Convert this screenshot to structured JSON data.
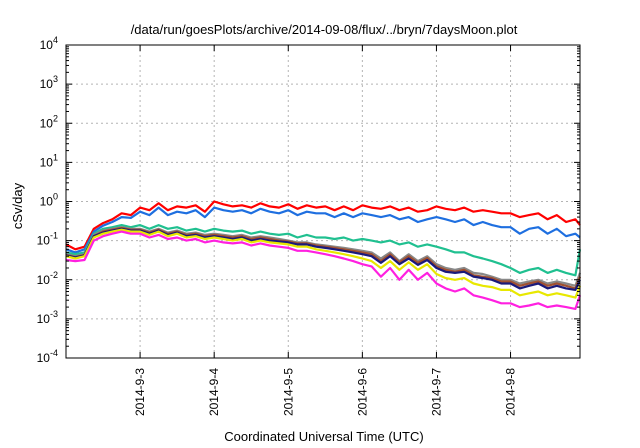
{
  "chart_data": {
    "type": "line",
    "title": "/data/run/goesPlots/archive/2014-09-08/flux/../bryn/7daysMoon.plot",
    "xlabel": "Coordinated Universal Time (UTC)",
    "ylabel": "cSv/day",
    "y_scale": "log",
    "ylim": [
      0.0001,
      10000
    ],
    "xlim": [
      "2014-09-02 00:00",
      "2014-09-08 22:30"
    ],
    "grid": true,
    "legend": "none",
    "x_ticks": [
      {
        "value": "2014-09-03",
        "label": "2014-9-3"
      },
      {
        "value": "2014-09-04",
        "label": "2014-9-4"
      },
      {
        "value": "2014-09-05",
        "label": "2014-9-5"
      },
      {
        "value": "2014-09-06",
        "label": "2014-9-6"
      },
      {
        "value": "2014-09-07",
        "label": "2014-9-7"
      },
      {
        "value": "2014-09-08",
        "label": "2014-9-8"
      }
    ],
    "y_ticks": [
      {
        "value": 0.0001,
        "base": "10",
        "exp": "-4"
      },
      {
        "value": 0.001,
        "base": "10",
        "exp": "-3"
      },
      {
        "value": 0.01,
        "base": "10",
        "exp": "-2"
      },
      {
        "value": 0.1,
        "base": "10",
        "exp": "-1"
      },
      {
        "value": 1,
        "base": "10",
        "exp": "0"
      },
      {
        "value": 10,
        "base": "10",
        "exp": "1"
      },
      {
        "value": 100,
        "base": "10",
        "exp": "2"
      },
      {
        "value": 1000,
        "base": "10",
        "exp": "3"
      },
      {
        "value": 10000,
        "base": "10",
        "exp": "4"
      }
    ],
    "x": [
      "2014-09-02 00:00",
      "2014-09-02 03:00",
      "2014-09-02 06:00",
      "2014-09-02 09:00",
      "2014-09-02 12:00",
      "2014-09-02 15:00",
      "2014-09-02 18:00",
      "2014-09-02 21:00",
      "2014-09-03 00:00",
      "2014-09-03 03:00",
      "2014-09-03 06:00",
      "2014-09-03 09:00",
      "2014-09-03 12:00",
      "2014-09-03 15:00",
      "2014-09-03 18:00",
      "2014-09-03 21:00",
      "2014-09-04 00:00",
      "2014-09-04 03:00",
      "2014-09-04 06:00",
      "2014-09-04 09:00",
      "2014-09-04 12:00",
      "2014-09-04 15:00",
      "2014-09-04 18:00",
      "2014-09-04 21:00",
      "2014-09-05 00:00",
      "2014-09-05 03:00",
      "2014-09-05 06:00",
      "2014-09-05 09:00",
      "2014-09-05 12:00",
      "2014-09-05 15:00",
      "2014-09-05 18:00",
      "2014-09-05 21:00",
      "2014-09-06 00:00",
      "2014-09-06 03:00",
      "2014-09-06 06:00",
      "2014-09-06 09:00",
      "2014-09-06 12:00",
      "2014-09-06 15:00",
      "2014-09-06 18:00",
      "2014-09-06 21:00",
      "2014-09-07 00:00",
      "2014-09-07 03:00",
      "2014-09-07 06:00",
      "2014-09-07 09:00",
      "2014-09-07 12:00",
      "2014-09-07 15:00",
      "2014-09-07 18:00",
      "2014-09-07 21:00",
      "2014-09-08 00:00",
      "2014-09-08 03:00",
      "2014-09-08 06:00",
      "2014-09-08 09:00",
      "2014-09-08 12:00",
      "2014-09-08 15:00",
      "2014-09-08 18:00",
      "2014-09-08 21:00",
      "2014-09-08 22:30"
    ],
    "series": [
      {
        "color": "#ff0000",
        "values": [
          0.08,
          0.06,
          0.07,
          0.2,
          0.28,
          0.35,
          0.5,
          0.45,
          0.7,
          0.6,
          0.9,
          0.6,
          0.75,
          0.7,
          0.8,
          0.55,
          1.0,
          0.85,
          0.75,
          0.8,
          0.7,
          0.9,
          0.75,
          0.7,
          0.85,
          0.65,
          0.8,
          0.7,
          0.75,
          0.6,
          0.75,
          0.6,
          0.8,
          0.7,
          0.65,
          0.75,
          0.6,
          0.7,
          0.55,
          0.6,
          0.75,
          0.65,
          0.6,
          0.7,
          0.55,
          0.6,
          0.55,
          0.5,
          0.5,
          0.4,
          0.45,
          0.5,
          0.35,
          0.45,
          0.3,
          0.35,
          0.25
        ]
      },
      {
        "color": "#1e6fe0",
        "values": [
          0.06,
          0.05,
          0.06,
          0.17,
          0.24,
          0.3,
          0.4,
          0.38,
          0.55,
          0.45,
          0.7,
          0.45,
          0.55,
          0.5,
          0.6,
          0.4,
          0.7,
          0.6,
          0.55,
          0.6,
          0.5,
          0.65,
          0.55,
          0.5,
          0.6,
          0.45,
          0.55,
          0.5,
          0.5,
          0.4,
          0.5,
          0.4,
          0.5,
          0.45,
          0.4,
          0.45,
          0.35,
          0.4,
          0.3,
          0.35,
          0.4,
          0.35,
          0.3,
          0.35,
          0.25,
          0.3,
          0.25,
          0.22,
          0.22,
          0.15,
          0.2,
          0.22,
          0.15,
          0.2,
          0.13,
          0.15,
          0.12
        ]
      },
      {
        "color": "#20c090",
        "values": [
          0.05,
          0.045,
          0.05,
          0.15,
          0.2,
          0.22,
          0.25,
          0.22,
          0.25,
          0.2,
          0.25,
          0.2,
          0.22,
          0.18,
          0.2,
          0.17,
          0.2,
          0.18,
          0.17,
          0.18,
          0.15,
          0.17,
          0.15,
          0.14,
          0.15,
          0.12,
          0.14,
          0.12,
          0.12,
          0.11,
          0.12,
          0.1,
          0.11,
          0.1,
          0.09,
          0.1,
          0.08,
          0.09,
          0.07,
          0.08,
          0.07,
          0.06,
          0.05,
          0.05,
          0.04,
          0.035,
          0.03,
          0.025,
          0.02,
          0.015,
          0.018,
          0.02,
          0.015,
          0.018,
          0.015,
          0.013,
          0.06
        ]
      },
      {
        "color": "#888888",
        "values": [
          0.045,
          0.04,
          0.045,
          0.14,
          0.18,
          0.2,
          0.22,
          0.2,
          0.2,
          0.17,
          0.2,
          0.16,
          0.18,
          0.15,
          0.16,
          0.14,
          0.15,
          0.14,
          0.13,
          0.14,
          0.12,
          0.13,
          0.12,
          0.11,
          0.1,
          0.09,
          0.09,
          0.08,
          0.075,
          0.07,
          0.065,
          0.06,
          0.055,
          0.05,
          0.035,
          0.05,
          0.03,
          0.045,
          0.03,
          0.04,
          0.025,
          0.02,
          0.018,
          0.02,
          0.015,
          0.014,
          0.012,
          0.01,
          0.01,
          0.008,
          0.009,
          0.01,
          0.008,
          0.009,
          0.008,
          0.007,
          0.015
        ]
      },
      {
        "color": "#a05030",
        "values": [
          0.043,
          0.038,
          0.043,
          0.13,
          0.17,
          0.19,
          0.21,
          0.19,
          0.19,
          0.16,
          0.19,
          0.15,
          0.17,
          0.14,
          0.15,
          0.13,
          0.14,
          0.13,
          0.12,
          0.13,
          0.11,
          0.12,
          0.11,
          0.1,
          0.095,
          0.085,
          0.085,
          0.075,
          0.07,
          0.065,
          0.06,
          0.055,
          0.05,
          0.045,
          0.03,
          0.045,
          0.028,
          0.04,
          0.027,
          0.036,
          0.022,
          0.018,
          0.016,
          0.018,
          0.013,
          0.012,
          0.011,
          0.009,
          0.009,
          0.007,
          0.008,
          0.009,
          0.007,
          0.008,
          0.007,
          0.006,
          0.012
        ]
      },
      {
        "color": "#1a1a7a",
        "values": [
          0.042,
          0.037,
          0.042,
          0.13,
          0.16,
          0.18,
          0.2,
          0.18,
          0.18,
          0.15,
          0.18,
          0.14,
          0.16,
          0.13,
          0.14,
          0.12,
          0.13,
          0.12,
          0.11,
          0.12,
          0.1,
          0.11,
          0.1,
          0.095,
          0.09,
          0.08,
          0.08,
          0.07,
          0.065,
          0.06,
          0.055,
          0.05,
          0.045,
          0.04,
          0.027,
          0.04,
          0.025,
          0.035,
          0.024,
          0.032,
          0.02,
          0.016,
          0.015,
          0.016,
          0.012,
          0.011,
          0.01,
          0.008,
          0.008,
          0.006,
          0.007,
          0.008,
          0.006,
          0.007,
          0.006,
          0.0055,
          0.01
        ]
      },
      {
        "color": "#e8e800",
        "values": [
          0.04,
          0.035,
          0.04,
          0.12,
          0.15,
          0.17,
          0.19,
          0.17,
          0.17,
          0.14,
          0.17,
          0.13,
          0.15,
          0.12,
          0.13,
          0.11,
          0.12,
          0.11,
          0.1,
          0.11,
          0.09,
          0.1,
          0.09,
          0.085,
          0.08,
          0.07,
          0.07,
          0.06,
          0.055,
          0.05,
          0.045,
          0.04,
          0.035,
          0.03,
          0.02,
          0.03,
          0.018,
          0.028,
          0.018,
          0.025,
          0.014,
          0.011,
          0.01,
          0.011,
          0.008,
          0.007,
          0.0065,
          0.0055,
          0.0055,
          0.004,
          0.0045,
          0.005,
          0.004,
          0.0045,
          0.004,
          0.0035,
          0.007
        ]
      },
      {
        "color": "#ff20e0",
        "values": [
          0.032,
          0.03,
          0.032,
          0.1,
          0.13,
          0.15,
          0.17,
          0.15,
          0.15,
          0.12,
          0.14,
          0.11,
          0.12,
          0.1,
          0.11,
          0.09,
          0.1,
          0.09,
          0.085,
          0.09,
          0.075,
          0.085,
          0.075,
          0.07,
          0.065,
          0.055,
          0.055,
          0.05,
          0.045,
          0.04,
          0.035,
          0.03,
          0.025,
          0.022,
          0.012,
          0.02,
          0.01,
          0.018,
          0.01,
          0.015,
          0.008,
          0.006,
          0.005,
          0.006,
          0.004,
          0.0035,
          0.003,
          0.0025,
          0.0025,
          0.002,
          0.0022,
          0.0025,
          0.002,
          0.0022,
          0.002,
          0.0018,
          0.004
        ]
      }
    ]
  }
}
